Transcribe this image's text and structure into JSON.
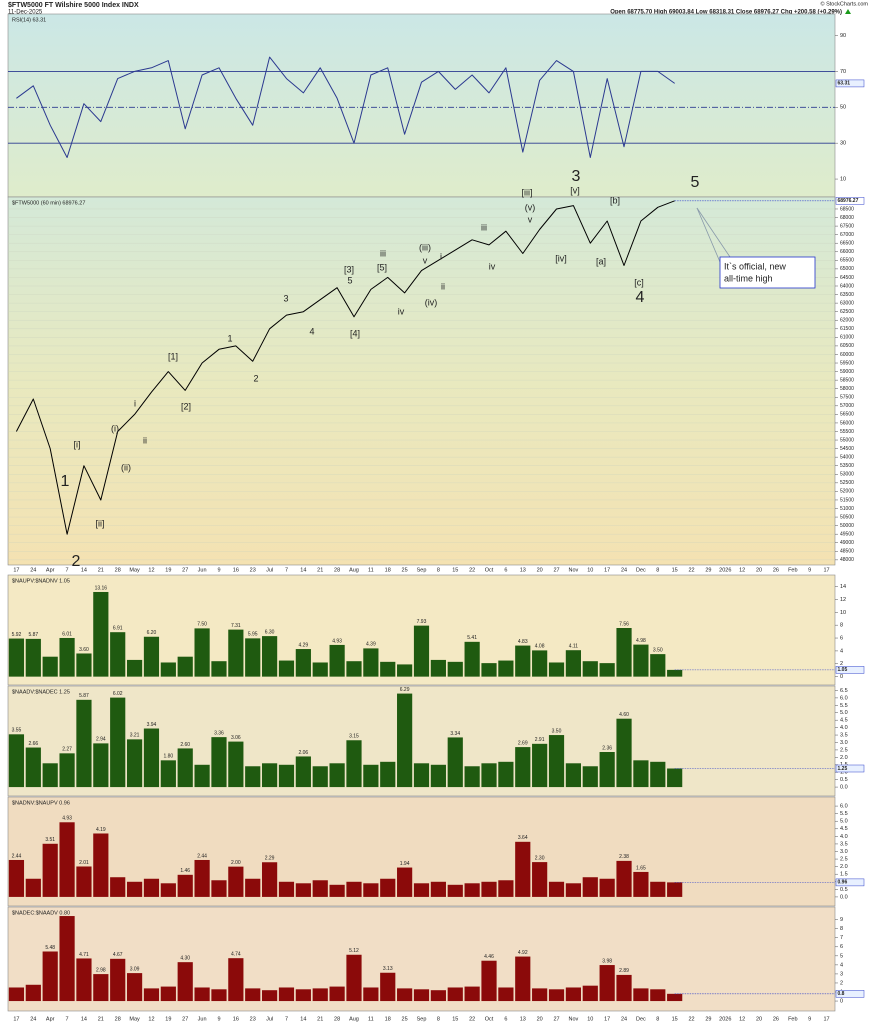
{
  "header": {
    "title": "$FTW5000 FT Wilshire 5000 Index INDX",
    "date": "11-Dec-2025",
    "quote": "Open 68775.70  High 69003.84  Low 68318.31  Close 68976.27  Chg +200.58 (+0.29%)",
    "credit": "© StockCharts.com"
  },
  "chart_data": [
    {
      "type": "line",
      "label": "RSI(14) 63.31",
      "color": "#2b3990",
      "values": [
        55,
        62,
        40,
        22,
        52,
        42,
        66,
        70,
        72,
        76,
        38,
        68,
        72,
        55,
        40,
        78,
        66,
        58,
        72,
        55,
        30,
        68,
        72,
        35,
        64,
        70,
        60,
        68,
        58,
        72,
        25,
        65,
        76,
        70,
        22,
        66,
        28,
        70,
        70,
        63.31,
        null,
        null,
        null,
        null,
        null,
        null,
        null,
        null,
        null
      ],
      "ylim": [
        0,
        102
      ],
      "yticks": [
        10,
        30,
        50,
        70,
        90
      ],
      "reference_lines": [
        {
          "value": 70,
          "style": "solid"
        },
        {
          "value": 50,
          "style": "dashed"
        },
        {
          "value": 30,
          "style": "solid"
        }
      ]
    },
    {
      "type": "line",
      "label": "$FTW5000 (60 min) 68976.27",
      "color": "#000000",
      "categories": [
        "17",
        "24",
        "Apr",
        "7",
        "14",
        "21",
        "28",
        "May",
        "12",
        "19",
        "27",
        "Jun",
        "9",
        "16",
        "23",
        "Jul",
        "7",
        "14",
        "21",
        "28",
        "Aug",
        "11",
        "18",
        "25",
        "Sep",
        "8",
        "15",
        "22",
        "Oct",
        "6",
        "13",
        "20",
        "27",
        "Nov",
        "10",
        "17",
        "24",
        "Dec",
        "8",
        "15",
        "22",
        "29",
        "2026",
        "12",
        "20",
        "26",
        "Feb",
        "9",
        "17"
      ],
      "values": [
        55500,
        57400,
        54500,
        49500,
        53500,
        51500,
        55500,
        56500,
        57800,
        59000,
        57900,
        59500,
        60300,
        60500,
        59600,
        61500,
        62300,
        62500,
        63200,
        63900,
        62200,
        63800,
        64500,
        63600,
        64900,
        65500,
        66100,
        66700,
        66400,
        67200,
        65900,
        67300,
        68500,
        68700,
        66500,
        67800,
        65200,
        67800,
        68600,
        68976.27,
        null,
        null,
        null,
        null,
        null,
        null,
        null,
        null,
        null
      ],
      "ylim": [
        47700,
        69200
      ],
      "yticks": [
        48000,
        48500,
        49000,
        49500,
        50000,
        50500,
        51000,
        51500,
        52000,
        52500,
        53000,
        53500,
        54000,
        54500,
        55000,
        55500,
        56000,
        56500,
        57000,
        57500,
        58000,
        58500,
        59000,
        59500,
        60000,
        60500,
        61000,
        61500,
        62000,
        62500,
        63000,
        63500,
        64000,
        64500,
        65000,
        65500,
        66000,
        66500,
        67000,
        67500,
        68000,
        68500
      ],
      "grid": true,
      "last_value_line": true,
      "annotations": [
        {
          "text": "1",
          "color": "#2233cc",
          "size": "large"
        },
        {
          "text": "2",
          "color": "#2233cc",
          "size": "large"
        },
        {
          "text": "[i]",
          "color": "#3a5a10"
        },
        {
          "text": "[ii]",
          "color": "#3a5a10"
        },
        {
          "text": "(i)",
          "color": "#e020c0"
        },
        {
          "text": "(ii)",
          "color": "#e020c0"
        },
        {
          "text": "i",
          "color": "#000000"
        },
        {
          "text": "ii",
          "color": "#000000"
        },
        {
          "text": "[1]",
          "color": "#e0301e"
        },
        {
          "text": "[2]",
          "color": "#e0301e"
        },
        {
          "text": "1",
          "color": "#2233cc"
        },
        {
          "text": "2",
          "color": "#2233cc"
        },
        {
          "text": "3",
          "color": "#2233cc"
        },
        {
          "text": "4",
          "color": "#2233cc"
        },
        {
          "text": "[3]",
          "color": "#e0301e"
        },
        {
          "text": "5",
          "color": "#2233cc"
        },
        {
          "text": "[4]",
          "color": "#e0301e"
        },
        {
          "text": "[5]",
          "color": "#e0301e"
        },
        {
          "text": "iii",
          "color": "#000000"
        },
        {
          "text": "iv",
          "color": "#000000"
        },
        {
          "text": "(iii)",
          "color": "#e020c0"
        },
        {
          "text": "v",
          "color": "#000000"
        },
        {
          "text": "(iv)",
          "color": "#e020c0"
        },
        {
          "text": "i",
          "color": "#000000"
        },
        {
          "text": "ii",
          "color": "#000000"
        },
        {
          "text": "iii",
          "color": "#000000"
        },
        {
          "text": "iv",
          "color": "#000000"
        },
        {
          "text": "[iii]",
          "color": "#3a5a10"
        },
        {
          "text": "(v)",
          "color": "#e020c0"
        },
        {
          "text": "v",
          "color": "#000000"
        },
        {
          "text": "[iv]",
          "color": "#3a5a10"
        },
        {
          "text": "3",
          "color": "#2233cc",
          "size": "large"
        },
        {
          "text": "[v]",
          "color": "#3a5a10"
        },
        {
          "text": "[b]",
          "color": "#3a5a10"
        },
        {
          "text": "[a]",
          "color": "#3a5a10"
        },
        {
          "text": "[c]",
          "color": "#3a5a10"
        },
        {
          "text": "4",
          "color": "#2233cc",
          "size": "large"
        },
        {
          "text": "5",
          "color": "#2233cc",
          "size": "large"
        }
      ],
      "callout": [
        "It`s official, new",
        "all-time high"
      ]
    },
    {
      "type": "bar",
      "label": "$NAUPV:$NADNV 1.05",
      "color": "#1f5a10",
      "last_value_line": true,
      "values": [
        5.92,
        5.87,
        3.1,
        6.01,
        3.6,
        13.16,
        6.91,
        2.6,
        6.2,
        2.2,
        3.1,
        7.5,
        2.4,
        7.31,
        5.95,
        6.3,
        2.5,
        4.29,
        2.2,
        4.93,
        2.4,
        4.39,
        2.3,
        1.9,
        7.93,
        2.6,
        2.3,
        5.41,
        2.1,
        2.5,
        4.83,
        4.08,
        2.2,
        4.11,
        2.4,
        2.1,
        7.56,
        4.98,
        3.5,
        1.05,
        null,
        null,
        null,
        null,
        null,
        null,
        null,
        null,
        null
      ],
      "value_labels": [
        "5.92",
        "5.87",
        null,
        "6.01",
        "3.60",
        "13.16",
        "6.91",
        null,
        "6.20",
        null,
        null,
        "7.50",
        null,
        "7.31",
        "5.95",
        "6.30",
        null,
        "4.29",
        null,
        "4.93",
        null,
        "4.39",
        null,
        null,
        "7.93",
        null,
        null,
        "5.41",
        null,
        null,
        "4.83",
        "4.08",
        null,
        "4.11",
        null,
        null,
        "7.56",
        "4.98",
        "3.50",
        null,
        null,
        null,
        null,
        null,
        null,
        null,
        null,
        null,
        null
      ],
      "ylim": [
        -1.3,
        15.8
      ],
      "yticks": [
        0,
        2,
        4,
        6,
        8,
        10,
        12,
        14
      ]
    },
    {
      "type": "bar",
      "label": "$NAADV:$NADEC 1.25",
      "color": "#1f5a10",
      "last_value_line": true,
      "values": [
        3.55,
        2.66,
        1.6,
        2.27,
        5.87,
        2.94,
        6.02,
        3.21,
        3.94,
        1.8,
        2.6,
        1.5,
        3.36,
        3.06,
        1.4,
        1.6,
        1.5,
        2.06,
        1.4,
        1.6,
        3.15,
        1.5,
        1.7,
        6.29,
        1.6,
        1.5,
        3.34,
        1.4,
        1.6,
        1.7,
        2.69,
        2.91,
        3.5,
        1.6,
        1.4,
        2.36,
        4.6,
        1.8,
        1.7,
        1.25,
        null,
        null,
        null,
        null,
        null,
        null,
        null,
        null,
        null
      ],
      "value_labels": [
        "3.55",
        "2.66",
        null,
        "2.27",
        "5.87",
        "2.94",
        "6.02",
        "3.21",
        "3.94",
        "1.80",
        "2.60",
        null,
        "3.36",
        "3.06",
        null,
        null,
        null,
        "2.06",
        null,
        null,
        "3.15",
        null,
        null,
        "6.29",
        null,
        null,
        "3.34",
        null,
        null,
        null,
        "2.69",
        "2.91",
        "3.50",
        null,
        null,
        "2.36",
        "4.60",
        null,
        null,
        null,
        null,
        null,
        null,
        null,
        null,
        null,
        null,
        null,
        null
      ],
      "ylim": [
        -0.6,
        6.8
      ],
      "yticks": [
        {
          "value": 0,
          "label": "0.0"
        },
        0.5,
        {
          "value": 1,
          "label": "1.0"
        },
        1.5,
        {
          "value": 2,
          "label": "2.0"
        },
        2.5,
        {
          "value": 3,
          "label": "3.0"
        },
        3.5,
        {
          "value": 4,
          "label": "4.0"
        },
        4.5,
        {
          "value": 5,
          "label": "5.0"
        },
        5.5,
        {
          "value": 6,
          "label": "6.0"
        },
        6.5
      ]
    },
    {
      "type": "bar",
      "label": "$NADNV:$NAUPV 0.96",
      "color": "#8b0a0a",
      "last_value_line": true,
      "values": [
        2.44,
        1.2,
        3.51,
        4.93,
        2.01,
        4.19,
        1.3,
        1.0,
        1.2,
        0.9,
        1.46,
        2.44,
        1.1,
        2.0,
        1.2,
        2.29,
        1.0,
        0.9,
        1.1,
        0.8,
        1.0,
        0.9,
        1.2,
        1.94,
        0.9,
        1.0,
        0.8,
        0.9,
        1.0,
        1.1,
        3.64,
        2.3,
        1.0,
        0.9,
        1.3,
        1.2,
        2.38,
        1.65,
        1.0,
        0.96,
        null,
        null,
        null,
        null,
        null,
        null,
        null,
        null,
        null
      ],
      "value_labels": [
        "2.44",
        null,
        "3.51",
        "4.93",
        "2.01",
        "4.19",
        null,
        null,
        null,
        null,
        "1.46",
        "2.44",
        null,
        "2.00",
        null,
        "2.29",
        null,
        null,
        null,
        null,
        null,
        null,
        null,
        "1.94",
        null,
        null,
        null,
        null,
        null,
        null,
        "3.64",
        "2.30",
        null,
        null,
        null,
        null,
        "2.38",
        "1.65",
        null,
        null,
        null,
        null,
        null,
        null,
        null,
        null,
        null,
        null,
        null
      ],
      "ylim": [
        -0.6,
        6.6
      ],
      "yticks": [
        {
          "value": 0,
          "label": "0.0"
        },
        0.5,
        {
          "value": 1,
          "label": "1.0"
        },
        1.5,
        {
          "value": 2,
          "label": "2.0"
        },
        2.5,
        {
          "value": 3,
          "label": "3.0"
        },
        3.5,
        {
          "value": 4,
          "label": "4.0"
        },
        4.5,
        {
          "value": 5,
          "label": "5.0"
        },
        5.5,
        {
          "value": 6,
          "label": "6.0"
        }
      ]
    },
    {
      "type": "bar",
      "label": "$NADEC:$NAADV 0.80",
      "color": "#8b0a0a",
      "last_value_line": true,
      "values": [
        1.5,
        1.8,
        5.48,
        9.4,
        4.71,
        2.98,
        4.67,
        3.09,
        1.4,
        1.6,
        4.3,
        1.5,
        1.3,
        4.74,
        1.4,
        1.2,
        1.5,
        1.3,
        1.4,
        1.6,
        5.12,
        1.5,
        3.13,
        1.4,
        1.3,
        1.2,
        1.5,
        1.6,
        4.46,
        1.5,
        4.92,
        1.4,
        1.3,
        1.5,
        1.7,
        3.98,
        2.89,
        1.4,
        1.3,
        0.8,
        null,
        null,
        null,
        null,
        null,
        null,
        null,
        null,
        null
      ],
      "value_labels": [
        null,
        null,
        "5.48",
        null,
        "4.71",
        "2.98",
        "4.67",
        "3.09",
        null,
        null,
        "4.30",
        null,
        null,
        "4.74",
        null,
        null,
        null,
        null,
        null,
        null,
        "5.12",
        null,
        "3.13",
        null,
        null,
        null,
        null,
        null,
        "4.46",
        null,
        "4.92",
        null,
        null,
        null,
        null,
        "3.98",
        "2.89",
        null,
        null,
        null,
        null,
        null,
        null,
        null,
        null,
        null,
        null,
        null,
        null
      ],
      "ylim": [
        -1.1,
        10.4
      ],
      "yticks": [
        0,
        1,
        2,
        3,
        4,
        5,
        6,
        7,
        8,
        9
      ]
    }
  ]
}
